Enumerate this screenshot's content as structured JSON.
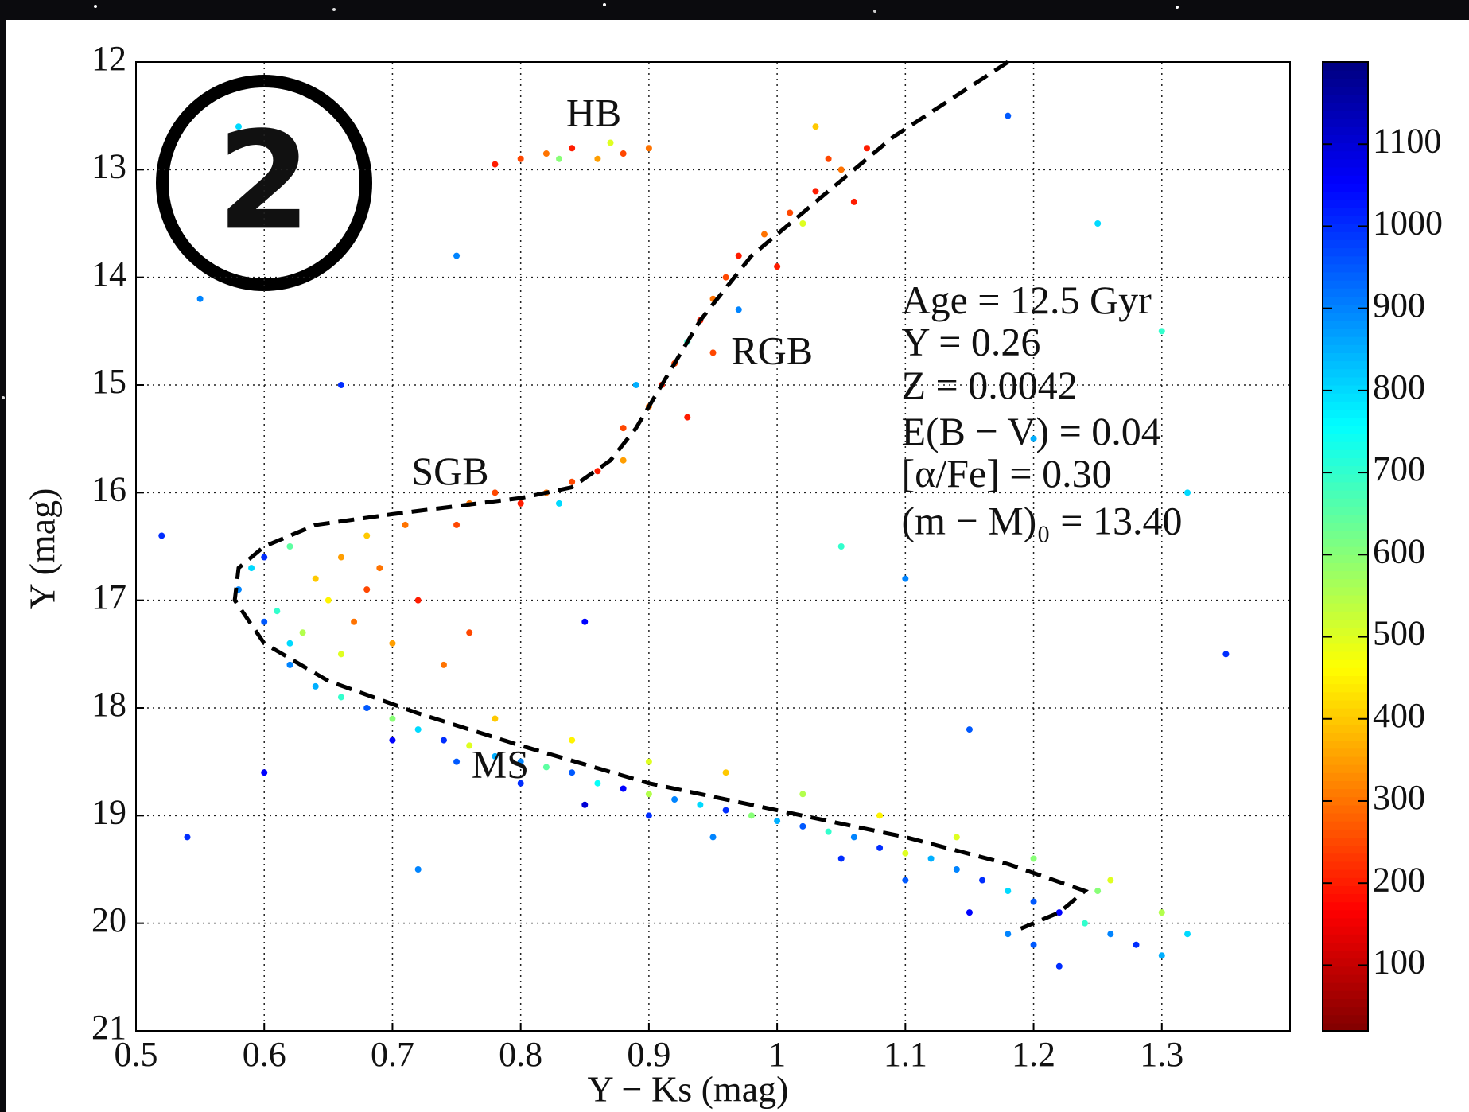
{
  "chart_data": {
    "type": "scatter",
    "badge": "2",
    "xlabel": "Y − Ks (mag)",
    "ylabel": "Y (mag)",
    "xlim": [
      0.5,
      1.4
    ],
    "xticks": [
      0.5,
      0.6,
      0.7,
      0.8,
      0.9,
      1,
      1.1,
      1.2,
      1.3
    ],
    "ylim": [
      21,
      12
    ],
    "yticks": [
      12,
      13,
      14,
      15,
      16,
      17,
      18,
      19,
      20,
      21
    ],
    "grid": true,
    "colormap": "jet_r",
    "clim": [
      20,
      1200
    ],
    "cticks": [
      100,
      200,
      300,
      400,
      500,
      600,
      700,
      800,
      900,
      1000,
      1100
    ],
    "points": [
      [
        0.62,
        17.6,
        900
      ],
      [
        0.64,
        17.8,
        850
      ],
      [
        0.66,
        17.9,
        700
      ],
      [
        0.68,
        18.0,
        950
      ],
      [
        0.7,
        18.1,
        600
      ],
      [
        0.72,
        18.2,
        800
      ],
      [
        0.74,
        18.3,
        1000
      ],
      [
        0.76,
        18.35,
        500
      ],
      [
        0.78,
        18.45,
        850
      ],
      [
        0.8,
        18.5,
        900
      ],
      [
        0.82,
        18.55,
        650
      ],
      [
        0.84,
        18.6,
        950
      ],
      [
        0.86,
        18.7,
        750
      ],
      [
        0.88,
        18.75,
        1050
      ],
      [
        0.9,
        18.8,
        550
      ],
      [
        0.92,
        18.85,
        900
      ],
      [
        0.94,
        18.9,
        800
      ],
      [
        0.96,
        18.95,
        1000
      ],
      [
        0.98,
        19.0,
        600
      ],
      [
        1.0,
        19.05,
        850
      ],
      [
        1.02,
        19.1,
        950
      ],
      [
        1.04,
        19.15,
        700
      ],
      [
        1.06,
        19.2,
        900
      ],
      [
        1.08,
        19.3,
        1000
      ],
      [
        1.1,
        19.35,
        500
      ],
      [
        1.12,
        19.4,
        850
      ],
      [
        1.14,
        19.5,
        900
      ],
      [
        1.16,
        19.6,
        1000
      ],
      [
        1.18,
        19.7,
        800
      ],
      [
        1.2,
        19.8,
        950
      ],
      [
        1.22,
        19.9,
        1050
      ],
      [
        1.24,
        20.0,
        700
      ],
      [
        1.26,
        20.1,
        900
      ],
      [
        1.28,
        20.2,
        1000
      ],
      [
        1.3,
        20.3,
        850
      ],
      [
        1.2,
        20.2,
        950
      ],
      [
        1.22,
        20.4,
        1000
      ],
      [
        1.18,
        20.1,
        900
      ],
      [
        1.25,
        19.7,
        600
      ],
      [
        1.3,
        19.9,
        550
      ],
      [
        1.32,
        20.1,
        800
      ],
      [
        1.15,
        19.9,
        1050
      ],
      [
        1.1,
        19.6,
        950
      ],
      [
        1.05,
        19.4,
        1000
      ],
      [
        0.95,
        19.2,
        900
      ],
      [
        0.9,
        19.0,
        1000
      ],
      [
        0.85,
        18.9,
        1100
      ],
      [
        0.8,
        18.7,
        1000
      ],
      [
        0.75,
        18.5,
        950
      ],
      [
        0.7,
        18.3,
        1050
      ],
      [
        0.84,
        18.3,
        450
      ],
      [
        0.9,
        18.5,
        500
      ],
      [
        0.96,
        18.6,
        400
      ],
      [
        1.02,
        18.8,
        550
      ],
      [
        1.08,
        19.0,
        450
      ],
      [
        1.14,
        19.2,
        500
      ],
      [
        1.2,
        19.4,
        600
      ],
      [
        1.26,
        19.6,
        500
      ],
      [
        0.78,
        18.1,
        400
      ],
      [
        0.58,
        16.9,
        900
      ],
      [
        0.59,
        16.7,
        800
      ],
      [
        0.6,
        16.6,
        1000
      ],
      [
        0.61,
        17.1,
        700
      ],
      [
        0.62,
        16.5,
        650
      ],
      [
        0.63,
        17.3,
        550
      ],
      [
        0.64,
        16.8,
        400
      ],
      [
        0.65,
        17.0,
        450
      ],
      [
        0.66,
        16.6,
        350
      ],
      [
        0.67,
        17.2,
        300
      ],
      [
        0.68,
        16.9,
        250
      ],
      [
        0.69,
        16.7,
        300
      ],
      [
        0.7,
        17.4,
        350
      ],
      [
        0.72,
        17.0,
        200
      ],
      [
        0.66,
        17.5,
        500
      ],
      [
        0.74,
        17.6,
        300
      ],
      [
        0.76,
        17.3,
        250
      ],
      [
        0.68,
        16.4,
        400
      ],
      [
        0.71,
        16.3,
        300
      ],
      [
        0.75,
        16.3,
        250
      ],
      [
        0.62,
        17.4,
        800
      ],
      [
        0.6,
        17.2,
        950
      ],
      [
        0.76,
        16.1,
        300
      ],
      [
        0.78,
        16.0,
        250
      ],
      [
        0.8,
        16.1,
        200
      ],
      [
        0.82,
        16.0,
        300
      ],
      [
        0.84,
        15.9,
        250
      ],
      [
        0.86,
        15.8,
        200
      ],
      [
        0.88,
        15.7,
        350
      ],
      [
        0.83,
        16.1,
        800
      ],
      [
        0.88,
        15.4,
        250
      ],
      [
        0.9,
        15.2,
        300
      ],
      [
        0.91,
        15.0,
        200
      ],
      [
        0.92,
        14.8,
        250
      ],
      [
        0.93,
        14.6,
        700
      ],
      [
        0.94,
        14.4,
        200
      ],
      [
        0.95,
        14.2,
        300
      ],
      [
        0.96,
        14.0,
        250
      ],
      [
        0.97,
        13.8,
        200
      ],
      [
        0.99,
        13.6,
        300
      ],
      [
        1.01,
        13.4,
        250
      ],
      [
        1.03,
        13.2,
        200
      ],
      [
        1.05,
        13.0,
        300
      ],
      [
        1.07,
        12.8,
        200
      ],
      [
        0.89,
        15.0,
        850
      ],
      [
        0.93,
        15.3,
        200
      ],
      [
        0.95,
        14.7,
        250
      ],
      [
        0.97,
        14.3,
        900
      ],
      [
        1.0,
        13.9,
        200
      ],
      [
        1.02,
        13.5,
        500
      ],
      [
        1.04,
        12.9,
        250
      ],
      [
        1.06,
        13.3,
        200
      ],
      [
        1.03,
        12.6,
        400
      ],
      [
        0.8,
        12.9,
        250
      ],
      [
        0.82,
        12.85,
        300
      ],
      [
        0.84,
        12.8,
        200
      ],
      [
        0.86,
        12.9,
        350
      ],
      [
        0.88,
        12.85,
        250
      ],
      [
        0.9,
        12.8,
        300
      ],
      [
        0.87,
        12.75,
        500
      ],
      [
        0.83,
        12.9,
        600
      ],
      [
        0.78,
        12.95,
        200
      ],
      [
        0.52,
        16.4,
        1000
      ],
      [
        0.55,
        14.2,
        900
      ],
      [
        0.58,
        12.6,
        800
      ],
      [
        0.66,
        15.0,
        1000
      ],
      [
        0.75,
        13.8,
        900
      ],
      [
        0.85,
        17.2,
        1050
      ],
      [
        1.1,
        16.8,
        900
      ],
      [
        1.2,
        15.5,
        850
      ],
      [
        1.3,
        14.5,
        700
      ],
      [
        1.35,
        17.5,
        1000
      ],
      [
        1.15,
        18.2,
        950
      ],
      [
        1.25,
        13.5,
        800
      ],
      [
        0.54,
        19.2,
        1000
      ],
      [
        0.72,
        19.5,
        900
      ],
      [
        1.05,
        16.5,
        700
      ],
      [
        1.32,
        16.0,
        800
      ],
      [
        0.6,
        18.6,
        1050
      ],
      [
        1.18,
        12.5,
        950
      ]
    ],
    "isochrone": {
      "x": [
        1.18,
        1.09,
        1.04,
        0.98,
        0.94,
        0.91,
        0.89,
        0.87,
        0.84,
        0.8,
        0.7,
        0.64,
        0.6,
        0.58,
        0.577,
        0.6,
        0.65,
        0.72,
        0.8,
        0.9,
        1.0,
        1.1,
        1.18,
        1.24,
        1.22,
        1.19
      ],
      "y": [
        12.0,
        12.7,
        13.2,
        13.8,
        14.4,
        15.0,
        15.4,
        15.7,
        15.95,
        16.05,
        16.2,
        16.3,
        16.5,
        16.7,
        17.0,
        17.4,
        17.75,
        18.05,
        18.35,
        18.7,
        18.95,
        19.2,
        19.45,
        19.7,
        19.9,
        20.05
      ]
    },
    "annotations": [
      {
        "text": "HB",
        "x": 0.857,
        "y": 12.51
      },
      {
        "text": "RGB",
        "x": 0.996,
        "y": 14.72
      },
      {
        "text": "SGB",
        "x": 0.745,
        "y": 15.84
      },
      {
        "text": "MS",
        "x": 0.784,
        "y": 18.56
      }
    ],
    "parameters": [
      {
        "text": "Age = 12.5 Gyr",
        "x": 1.097,
        "y": 14.25
      },
      {
        "text": "Y = 0.26",
        "x": 1.097,
        "y": 14.64
      },
      {
        "text": "Z = 0.0042",
        "x": 1.097,
        "y": 15.04
      },
      {
        "text": "E(B − V) = 0.04",
        "x": 1.097,
        "y": 15.47
      },
      {
        "text": "[α/Fe] = 0.30",
        "x": 1.097,
        "y": 15.86
      },
      {
        "text": "(m − M)₀ = 13.40",
        "x": 1.097,
        "y": 16.3
      }
    ]
  }
}
